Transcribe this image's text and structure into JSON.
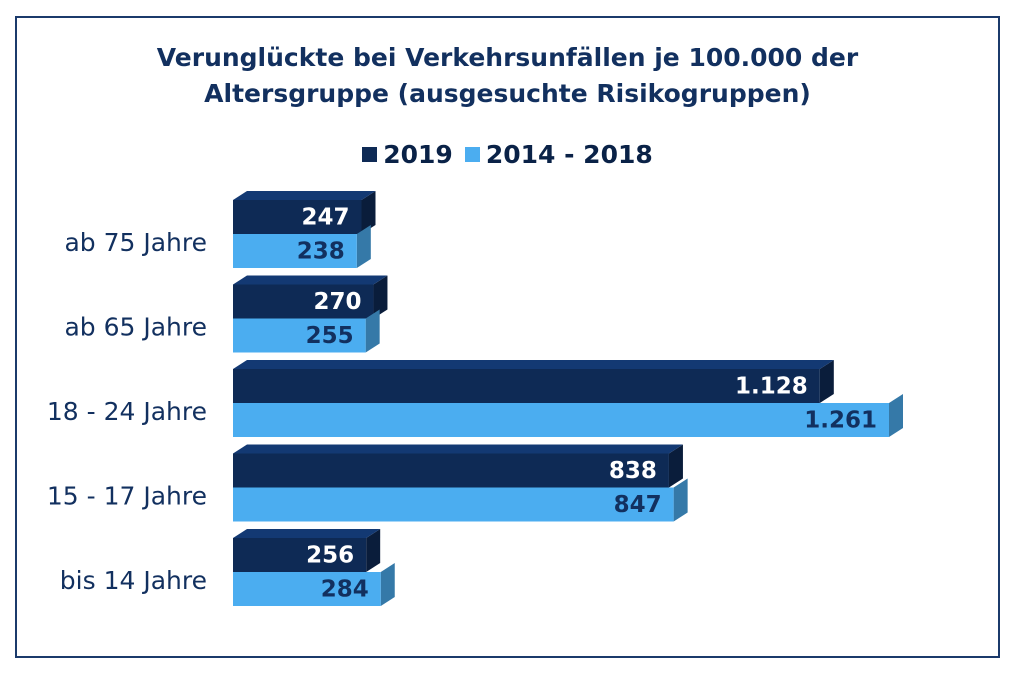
{
  "chart_data": {
    "type": "bar",
    "orientation": "horizontal",
    "title": [
      "Verunglückte bei Verkehrsunfällen je 100.000 der",
      "Altersgruppe (ausgesuchte Risikogruppen)"
    ],
    "categories": [
      "ab 75 Jahre",
      "ab 65 Jahre",
      "18 - 24 Jahre",
      "15 - 17 Jahre",
      "bis 14 Jahre"
    ],
    "series": [
      {
        "name": "2019",
        "color": "#0e2a55",
        "label_color": "#ffffff",
        "values": [
          247,
          270,
          1128,
          838,
          256
        ],
        "labels": [
          "247",
          "270",
          "1.128",
          "838",
          "256"
        ]
      },
      {
        "name": "2014 - 2018",
        "color": "#4badf0",
        "label_color": "#12305f",
        "values": [
          238,
          255,
          1261,
          847,
          284
        ],
        "labels": [
          "238",
          "255",
          "1.261",
          "847",
          "284"
        ]
      }
    ],
    "xlim": [
      0,
      1261
    ],
    "legend_position": "top",
    "grid": false,
    "style": "3d"
  }
}
